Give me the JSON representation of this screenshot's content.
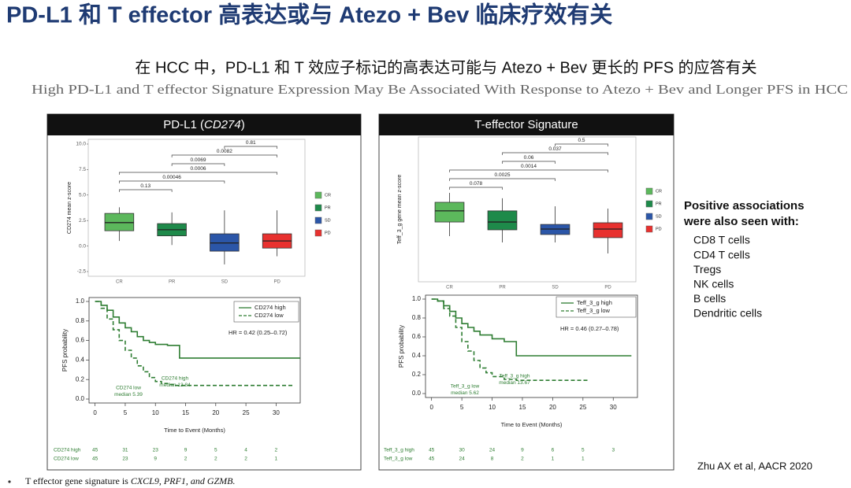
{
  "slide": {
    "title": "PD-L1 和 T effector 高表达或与 Atezo + Bev 临床疗效有关",
    "subtitle_cn": "在 HCC 中，PD-L1 和 T 效应子标记的高表达可能与 Atezo + Bev 更长的 PFS 的应答有关",
    "subtitle_en": "High PD-L1 and T effector Signature Expression May Be Associated With Response to Atezo + Bev and Longer PFS in HCC",
    "side_heading": [
      "Positive associations",
      "were also seen with:"
    ],
    "side_items": [
      "CD8 T cells",
      "CD4 T cells",
      "Tregs",
      "NK cells",
      "B cells",
      "Dendritic cells"
    ],
    "citation": "Zhu AX et al, AACR 2020",
    "footnote": [
      "T effector gene signature is ",
      "CXCL9, PRF1, and GZMB."
    ]
  },
  "panels": [
    {
      "title_parts": [
        "PD-L1 (",
        "CD274",
        ")"
      ]
    },
    {
      "title_parts": [
        "T-effector Signature"
      ]
    }
  ],
  "chart_data": [
    {
      "type": "box",
      "ylabel": "CD274 mean z-score",
      "categories": [
        "CR",
        "PR",
        "SD",
        "PD"
      ],
      "colors": [
        "#5cb85c",
        "#1e8a4a",
        "#2b56a8",
        "#e8312f"
      ],
      "boxes": [
        {
          "low": 0.5,
          "q1": 1.5,
          "median": 2.3,
          "q3": 3.2,
          "high": 3.8
        },
        {
          "low": 0.1,
          "q1": 1.0,
          "median": 1.6,
          "q3": 2.2,
          "high": 3.3
        },
        {
          "low": -1.8,
          "q1": -0.5,
          "median": 0.3,
          "q3": 1.2,
          "high": 3.5
        },
        {
          "low": -1.0,
          "q1": -0.2,
          "median": 0.5,
          "q3": 1.2,
          "high": 3.5
        }
      ],
      "comparisons": [
        {
          "pair": [
            "CR",
            "PR"
          ],
          "p": 0.13
        },
        {
          "pair": [
            "CR",
            "SD"
          ],
          "p": 0.00046
        },
        {
          "pair": [
            "CR",
            "PD"
          ],
          "p": 0.0006
        },
        {
          "pair": [
            "PR",
            "SD"
          ],
          "p": 0.0069
        },
        {
          "pair": [
            "PR",
            "PD"
          ],
          "p": 0.0082
        },
        {
          "pair": [
            "SD",
            "PD"
          ],
          "p": 0.81
        }
      ],
      "ylim": [
        -2.5,
        10
      ],
      "yticks": [
        {
          "value": 10,
          "label": "10.0"
        },
        {
          "value": 7.5,
          "label": "7.5"
        },
        {
          "value": 5,
          "label": "5.0"
        },
        {
          "value": 2.5,
          "label": "2.5"
        },
        {
          "value": 0,
          "label": "0.0"
        },
        {
          "value": -2.5,
          "label": "-2.5"
        }
      ],
      "legend": true
    },
    {
      "type": "km",
      "xlabel": "Time to Event (Months)",
      "ylabel": "PFS probability",
      "xlim": [
        -1,
        34
      ],
      "ylim": [
        0,
        1
      ],
      "xticks": [
        0,
        5,
        10,
        15,
        20,
        25,
        30
      ],
      "yticks": [
        {
          "value": 0,
          "label": "0.0"
        },
        {
          "value": 0.2,
          "label": "0.2"
        },
        {
          "value": 0.4,
          "label": "0.4"
        },
        {
          "value": 0.6,
          "label": "0.6"
        },
        {
          "value": 0.8,
          "label": "0.8"
        },
        {
          "value": 1,
          "label": "1.0"
        }
      ],
      "series": [
        {
          "name": "CD274 high",
          "color": "#2e7d32",
          "dashed": false,
          "x": [
            0,
            1,
            2,
            3,
            4,
            5,
            6,
            7,
            8,
            9,
            10,
            12,
            14,
            34
          ],
          "values": [
            1.0,
            0.96,
            0.91,
            0.84,
            0.78,
            0.73,
            0.69,
            0.64,
            0.6,
            0.58,
            0.56,
            0.55,
            0.42,
            0.42
          ]
        },
        {
          "name": "CD274 low",
          "color": "#2e7d32",
          "dashed": true,
          "x": [
            0,
            1,
            2,
            3,
            4,
            5,
            6,
            7,
            8,
            9,
            10,
            11,
            12,
            13,
            33
          ],
          "values": [
            1.0,
            0.93,
            0.82,
            0.71,
            0.6,
            0.5,
            0.42,
            0.34,
            0.28,
            0.22,
            0.18,
            0.16,
            0.15,
            0.14,
            0.14
          ]
        }
      ],
      "hr": "HR = 0.42 (0.25–0.72)",
      "annotations": [
        [
          "CD274 low",
          "median 5.39"
        ],
        [
          "CD274 high",
          "median 13.84"
        ]
      ],
      "risk_table": [
        {
          "name": "CD274 high",
          "values": [
            45,
            31,
            23,
            9,
            5,
            4,
            2
          ]
        },
        {
          "name": "CD274 low",
          "values": [
            45,
            23,
            9,
            2,
            2,
            2,
            1
          ]
        }
      ]
    },
    {
      "type": "box",
      "ylabel": "Teff_3_g gene mean z-score",
      "categories": [
        "CR",
        "PR",
        "SD",
        "PD"
      ],
      "colors": [
        "#5cb85c",
        "#1e8a4a",
        "#2b56a8",
        "#e8312f"
      ],
      "boxes": [
        {
          "low": -0.28,
          "q1": 0.66,
          "median": 1.4,
          "q3": 1.97,
          "high": 2.6
        },
        {
          "low": -0.7,
          "q1": 0.14,
          "median": 0.66,
          "q3": 1.4,
          "high": 2.24
        },
        {
          "low": -0.7,
          "q1": -0.17,
          "median": 0.19,
          "q3": 0.5,
          "high": 1.7
        },
        {
          "low": -1.43,
          "q1": -0.38,
          "median": 0.19,
          "q3": 0.61,
          "high": 1.55
        }
      ],
      "comparisons": [
        {
          "pair": [
            "CR",
            "PR"
          ],
          "p": 0.078
        },
        {
          "pair": [
            "CR",
            "SD"
          ],
          "p": 0.0025
        },
        {
          "pair": [
            "CR",
            "PD"
          ],
          "p": 0.0014
        },
        {
          "pair": [
            "PR",
            "SD"
          ],
          "p": 0.06
        },
        {
          "pair": [
            "PR",
            "PD"
          ],
          "p": 0.037
        },
        {
          "pair": [
            "SD",
            "PD"
          ],
          "p": 0.5
        }
      ],
      "ylim": [
        -3,
        6
      ],
      "legend": true
    },
    {
      "type": "km",
      "xlabel": "Time to Event (Months)",
      "ylabel": "PFS probability",
      "xlim": [
        -1,
        34
      ],
      "ylim": [
        0,
        1
      ],
      "xticks": [
        0,
        5,
        10,
        15,
        20,
        25,
        30
      ],
      "yticks": [
        {
          "value": 0,
          "label": "0.0"
        },
        {
          "value": 0.2,
          "label": "0.2"
        },
        {
          "value": 0.4,
          "label": "0.4"
        },
        {
          "value": 0.6,
          "label": "0.6"
        },
        {
          "value": 0.8,
          "label": "0.8"
        },
        {
          "value": 1,
          "label": "1.0"
        }
      ],
      "series": [
        {
          "name": "Teff_3_g high",
          "color": "#2e7d32",
          "dashed": false,
          "x": [
            0,
            1,
            2,
            3,
            4,
            5,
            6,
            7,
            8,
            10,
            12,
            14,
            33
          ],
          "values": [
            1.0,
            0.98,
            0.93,
            0.87,
            0.8,
            0.74,
            0.7,
            0.66,
            0.62,
            0.58,
            0.55,
            0.4,
            0.4
          ]
        },
        {
          "name": "Teff_3_g low",
          "color": "#2e7d32",
          "dashed": true,
          "x": [
            0,
            1,
            2,
            3,
            4,
            5,
            6,
            7,
            8,
            9,
            10,
            12,
            14,
            26
          ],
          "values": [
            1.0,
            0.98,
            0.9,
            0.82,
            0.7,
            0.55,
            0.45,
            0.35,
            0.27,
            0.22,
            0.18,
            0.15,
            0.14,
            0.14
          ]
        }
      ],
      "hr": "HR = 0.46 (0.27–0.78)",
      "annotations": [
        [
          "Teff_3_g low",
          "median 5.62"
        ],
        [
          "Teff_3_g high",
          "median 13.67"
        ]
      ],
      "risk_table": [
        {
          "name": "Teff_3_g high",
          "values": [
            45,
            30,
            24,
            9,
            6,
            5,
            3
          ]
        },
        {
          "name": "Teff_3_g low",
          "values": [
            45,
            24,
            8,
            2,
            1,
            1,
            null
          ]
        }
      ]
    }
  ]
}
